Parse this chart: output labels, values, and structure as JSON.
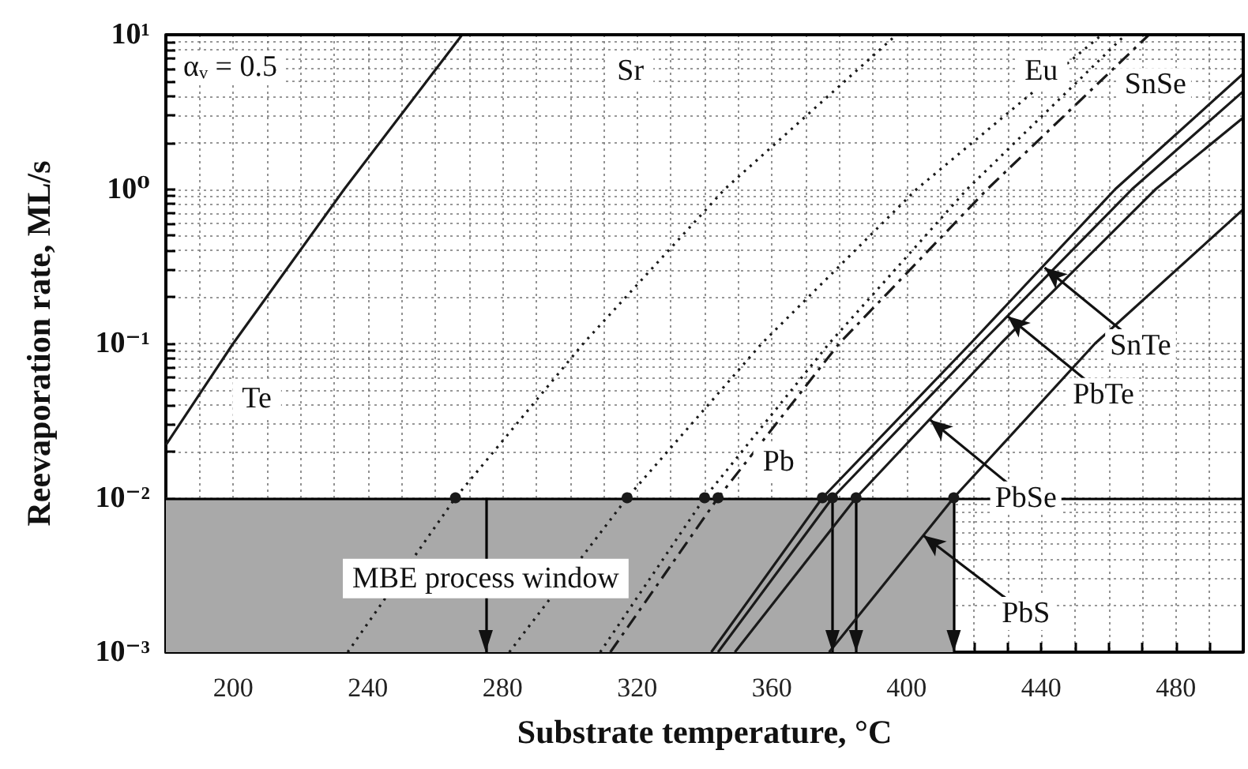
{
  "chart_data": {
    "type": "line",
    "xlabel": "Substrate temperature, °C",
    "ylabel": "Reevaporation rate, ML/s",
    "xlim": [
      180,
      500
    ],
    "xticks": [
      200,
      240,
      280,
      320,
      360,
      400,
      440,
      480
    ],
    "ylim": [
      0.001,
      10
    ],
    "yticks": [
      {
        "value": 0.001,
        "label": "10⁻³"
      },
      {
        "value": 0.01,
        "label": "10⁻²"
      },
      {
        "value": 0.1,
        "label": "10⁻¹"
      },
      {
        "value": 1,
        "label": "10⁰"
      },
      {
        "value": 10,
        "label": "10¹"
      }
    ],
    "log": "y",
    "grid": true,
    "series": [
      {
        "color": "#1a1a1a",
        "line_style": "solid",
        "x": [
          180,
          200,
          233,
          268
        ],
        "values": [
          0.022,
          0.1,
          1,
          10
        ]
      },
      {
        "color": "#1a1a1a",
        "line_style": "dotted",
        "x": [
          234,
          266,
          304,
          346,
          397
        ],
        "values": [
          0.001,
          0.01,
          0.1,
          1,
          10
        ]
      },
      {
        "color": "#1a1a1a",
        "line_style": "dotted",
        "x": [
          282,
          317,
          357,
          403,
          458
        ],
        "values": [
          0.001,
          0.01,
          0.1,
          1,
          10
        ]
      },
      {
        "color": "#1a1a1a",
        "line_style": "dotted",
        "x": [
          309,
          340,
          377,
          418,
          465
        ],
        "values": [
          0.001,
          0.01,
          0.1,
          1,
          10
        ]
      },
      {
        "color": "#1a1a1a",
        "line_style": "dashed",
        "x": [
          312,
          344,
          380,
          424,
          472
        ],
        "values": [
          0.001,
          0.01,
          0.1,
          1,
          10
        ]
      },
      {
        "color": "#1a1a1a",
        "line_style": "solid",
        "x": [
          342,
          375,
          419,
          462,
          500
        ],
        "values": [
          0.001,
          0.01,
          0.1,
          1,
          5.6
        ]
      },
      {
        "color": "#1a1a1a",
        "line_style": "solid",
        "x": [
          344,
          378,
          422,
          467,
          500
        ],
        "values": [
          0.001,
          0.01,
          0.1,
          1,
          4.3
        ]
      },
      {
        "color": "#1a1a1a",
        "line_style": "solid",
        "x": [
          349,
          385,
          428,
          474,
          500
        ],
        "values": [
          0.001,
          0.01,
          0.1,
          1,
          2.9
        ]
      },
      {
        "color": "#1a1a1a",
        "line_style": "solid",
        "x": [
          377,
          414,
          456,
          500
        ],
        "values": [
          0.001,
          0.01,
          0.1,
          0.74
        ]
      }
    ],
    "ref_lines": [
      {
        "axis": "y",
        "value": 0.01,
        "color": "#000000"
      },
      {
        "axis": "x",
        "value": 275,
        "color": "#000000"
      },
      {
        "axis": "x",
        "value": 378,
        "color": "#000000"
      },
      {
        "axis": "x",
        "value": 385,
        "color": "#000000"
      },
      {
        "axis": "x",
        "value": 414,
        "color": "#000000"
      }
    ],
    "bands": [
      {
        "axis": "x",
        "from": 180,
        "to": 414,
        "color": "#a9a9a9"
      }
    ],
    "annotations": [
      "αᵥ = 0.5",
      {
        "text": "Te",
        "x": 207,
        "y": 0.044
      },
      {
        "text": "Sr",
        "x": 318,
        "y": 5.8
      },
      {
        "text": "Eu",
        "x": 440,
        "y": 5.8
      },
      {
        "text": "SnSe",
        "x": 461,
        "y": 5.8
      },
      {
        "text": "Pb",
        "x": 362,
        "y": 0.017
      },
      {
        "text": "MBE process window",
        "x": 275,
        "y": 0.003
      },
      {
        "text": "SnTe",
        "x": 441,
        "y": 0.31
      },
      {
        "text": "PbTe",
        "x": 430,
        "y": 0.15
      },
      {
        "text": "PbSe",
        "x": 407,
        "y": 0.032
      },
      {
        "text": "PbS",
        "x": 405,
        "y": 0.0057
      }
    ]
  }
}
